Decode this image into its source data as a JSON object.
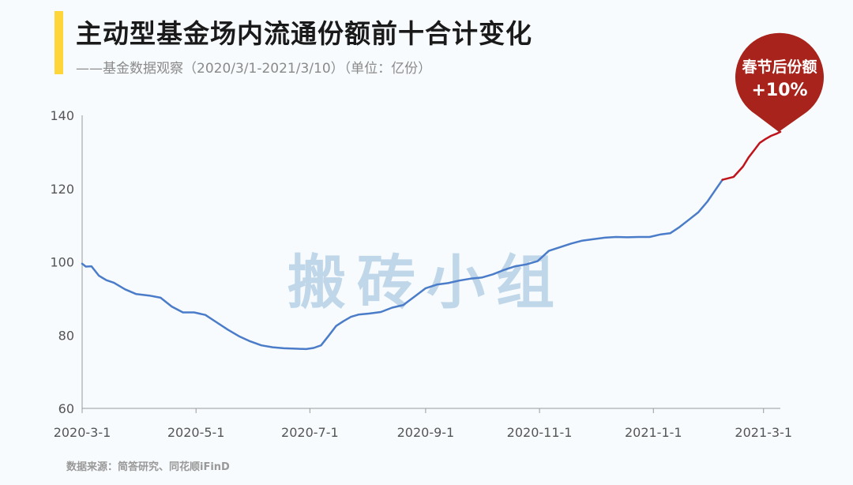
{
  "header": {
    "title": "主动型基金场内流通份额前十合计变化",
    "subtitle": "——基金数据观察（2020/3/1-2021/3/10）（单位：亿份）"
  },
  "watermark": "搬砖小组",
  "source": "数据来源：简答研究、同花顺iFinD",
  "annotation": {
    "line1": "春节后份额",
    "line2": "+10%"
  },
  "colors": {
    "main_series": "#4a7cc9",
    "highlight_series": "#c0141c",
    "pin": "#a8231c",
    "accent": "#ffd63a"
  },
  "chart_data": {
    "type": "line",
    "title": "主动型基金场内流通份额前十合计变化",
    "ylim": [
      60,
      140
    ],
    "yticks": [
      60,
      80,
      100,
      120,
      140
    ],
    "xlim": [
      "2020-03-01",
      "2021-03-10"
    ],
    "xticks": [
      "2020-03-01",
      "2020-05-01",
      "2020-07-01",
      "2020-09-01",
      "2020-11-01",
      "2021-01-01",
      "2021-03-01"
    ],
    "xtick_labels": [
      "2020-3-1",
      "2020-5-1",
      "2020-7-1",
      "2020-9-1",
      "2020-11-1",
      "2021-1-1",
      "2021-3-1"
    ],
    "grid": false,
    "series": [
      {
        "x": [
          "2020-03-01",
          "2020-03-03",
          "2020-03-06",
          "2020-03-10",
          "2020-03-14",
          "2020-03-18",
          "2020-03-24",
          "2020-03-30",
          "2020-04-06",
          "2020-04-12",
          "2020-04-18",
          "2020-04-24",
          "2020-04-30",
          "2020-05-06",
          "2020-05-12",
          "2020-05-18",
          "2020-05-24",
          "2020-05-30",
          "2020-06-05",
          "2020-06-11",
          "2020-06-17",
          "2020-06-23",
          "2020-06-29",
          "2020-07-03",
          "2020-07-07",
          "2020-07-11",
          "2020-07-15",
          "2020-07-19",
          "2020-07-23",
          "2020-07-27",
          "2020-08-02",
          "2020-08-08",
          "2020-08-14",
          "2020-08-20",
          "2020-08-26",
          "2020-09-01",
          "2020-09-07",
          "2020-09-13",
          "2020-09-19",
          "2020-09-25",
          "2020-10-01",
          "2020-10-07",
          "2020-10-13",
          "2020-10-19",
          "2020-10-25",
          "2020-10-31",
          "2020-11-06",
          "2020-11-12",
          "2020-11-18",
          "2020-11-24",
          "2020-11-30",
          "2020-12-06",
          "2020-12-12",
          "2020-12-18",
          "2020-12-24",
          "2020-12-30",
          "2021-01-05",
          "2021-01-10",
          "2021-01-15",
          "2021-01-20",
          "2021-01-25",
          "2021-01-30",
          "2021-02-04",
          "2021-02-07"
        ],
        "values": [
          99.5,
          98.7,
          98.8,
          96.2,
          95,
          94.3,
          92.5,
          91.2,
          90.8,
          90.2,
          87.8,
          86.2,
          86.2,
          85.5,
          83.5,
          81.5,
          79.7,
          78.3,
          77.2,
          76.7,
          76.4,
          76.3,
          76.2,
          76.5,
          77.2,
          79.8,
          82.5,
          83.8,
          85.0,
          85.6,
          85.9,
          86.3,
          87.5,
          88.2,
          90.5,
          92.8,
          93.8,
          94.2,
          94.9,
          95.4,
          95.7,
          96.6,
          97.8,
          98.8,
          99.3,
          100.2,
          103.0,
          104.0,
          105.0,
          105.8,
          106.2,
          106.6,
          106.8,
          106.7,
          106.8,
          106.8,
          107.5,
          107.8,
          109.5,
          111.5,
          113.5,
          116.5,
          120.2,
          122.4
        ]
      },
      {
        "x": [
          "2021-02-07",
          "2021-02-13",
          "2021-02-18",
          "2021-02-21",
          "2021-02-24",
          "2021-02-27",
          "2021-03-02",
          "2021-03-05",
          "2021-03-08",
          "2021-03-10"
        ],
        "values": [
          122.4,
          123.2,
          126.0,
          128.5,
          130.5,
          132.5,
          133.5,
          134.4,
          135.0,
          135.5
        ]
      }
    ]
  }
}
